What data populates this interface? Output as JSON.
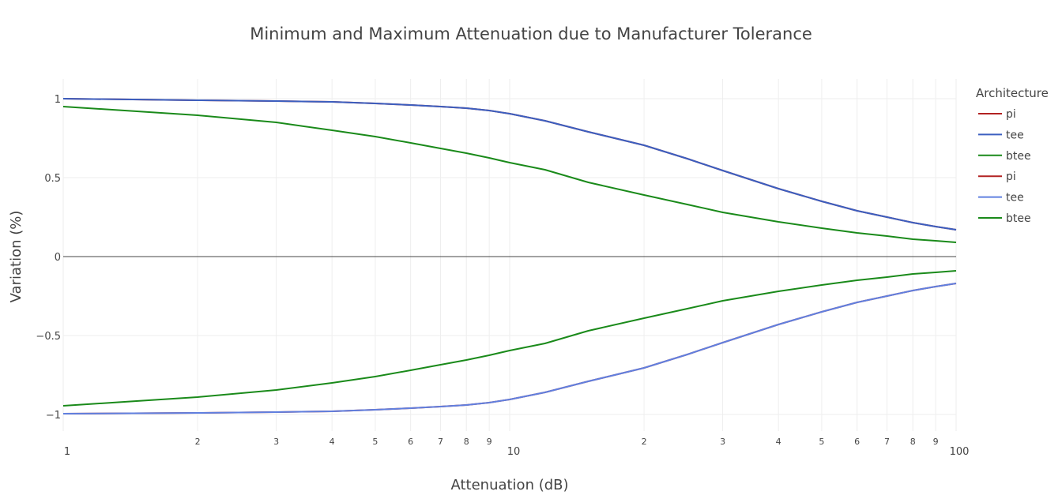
{
  "chart_data": {
    "type": "line",
    "title": "Minimum and Maximum Attenuation due to Manufacturer Tolerance",
    "xlabel": "Attenuation (dB)",
    "ylabel": "Variation (%)",
    "x_scale": "log",
    "xlim": [
      1,
      100
    ],
    "ylim": [
      -1.05,
      1.05
    ],
    "grid": true,
    "zero_line": true,
    "legend_title": "Architecture",
    "legend_position": "right",
    "x_major_ticks": [
      {
        "value": 1,
        "label": "1"
      },
      {
        "value": 10,
        "label": "10"
      },
      {
        "value": 100,
        "label": "100"
      }
    ],
    "x_minor_ticks": [
      {
        "value": 2,
        "label": "2"
      },
      {
        "value": 3,
        "label": "3"
      },
      {
        "value": 4,
        "label": "4"
      },
      {
        "value": 5,
        "label": "5"
      },
      {
        "value": 6,
        "label": "6"
      },
      {
        "value": 7,
        "label": "7"
      },
      {
        "value": 8,
        "label": "8"
      },
      {
        "value": 9,
        "label": "9"
      },
      {
        "value": 20,
        "label": "2"
      },
      {
        "value": 30,
        "label": "3"
      },
      {
        "value": 40,
        "label": "4"
      },
      {
        "value": 50,
        "label": "5"
      },
      {
        "value": 60,
        "label": "6"
      },
      {
        "value": 70,
        "label": "7"
      },
      {
        "value": 80,
        "label": "8"
      },
      {
        "value": 90,
        "label": "9"
      }
    ],
    "y_ticks": [
      {
        "value": 1,
        "label": "1"
      },
      {
        "value": 0.5,
        "label": "0.5"
      },
      {
        "value": 0,
        "label": "0"
      },
      {
        "value": -0.5,
        "label": "−0.5"
      },
      {
        "value": -1,
        "label": "−1"
      }
    ],
    "x": [
      1,
      2,
      3,
      4,
      5,
      6,
      7,
      8,
      9,
      10,
      12,
      15,
      20,
      25,
      30,
      40,
      50,
      60,
      70,
      80,
      90,
      100
    ],
    "series": [
      {
        "name": "pi",
        "color": "#b22222",
        "values": [
          1.0,
          0.99,
          0.985,
          0.98,
          0.97,
          0.96,
          0.95,
          0.94,
          0.925,
          0.905,
          0.86,
          0.79,
          0.705,
          0.62,
          0.545,
          0.43,
          0.35,
          0.29,
          0.25,
          0.215,
          0.19,
          0.17
        ]
      },
      {
        "name": "tee",
        "color": "#3b5fc0",
        "values": [
          1.0,
          0.99,
          0.985,
          0.98,
          0.97,
          0.96,
          0.95,
          0.94,
          0.925,
          0.905,
          0.86,
          0.79,
          0.705,
          0.62,
          0.545,
          0.43,
          0.35,
          0.29,
          0.25,
          0.215,
          0.19,
          0.17
        ]
      },
      {
        "name": "btee",
        "color": "#1a8a1a",
        "values": [
          0.95,
          0.895,
          0.85,
          0.8,
          0.76,
          0.72,
          0.685,
          0.655,
          0.625,
          0.595,
          0.55,
          0.47,
          0.39,
          0.33,
          0.28,
          0.22,
          0.18,
          0.15,
          0.13,
          0.11,
          0.1,
          0.09
        ]
      },
      {
        "name": "pi",
        "color": "#b22222",
        "values": [
          -0.995,
          -0.99,
          -0.985,
          -0.98,
          -0.97,
          -0.96,
          -0.95,
          -0.94,
          -0.925,
          -0.905,
          -0.86,
          -0.79,
          -0.705,
          -0.62,
          -0.545,
          -0.43,
          -0.35,
          -0.29,
          -0.25,
          -0.215,
          -0.19,
          -0.17
        ]
      },
      {
        "name": "tee",
        "color": "#6080e0",
        "values": [
          -0.995,
          -0.99,
          -0.985,
          -0.98,
          -0.97,
          -0.96,
          -0.95,
          -0.94,
          -0.925,
          -0.905,
          -0.86,
          -0.79,
          -0.705,
          -0.62,
          -0.545,
          -0.43,
          -0.35,
          -0.29,
          -0.25,
          -0.215,
          -0.19,
          -0.17
        ]
      },
      {
        "name": "btee",
        "color": "#1a8a1a",
        "values": [
          -0.945,
          -0.89,
          -0.845,
          -0.8,
          -0.76,
          -0.72,
          -0.685,
          -0.655,
          -0.625,
          -0.595,
          -0.55,
          -0.47,
          -0.39,
          -0.33,
          -0.28,
          -0.22,
          -0.18,
          -0.15,
          -0.13,
          -0.11,
          -0.1,
          -0.09
        ]
      }
    ]
  }
}
